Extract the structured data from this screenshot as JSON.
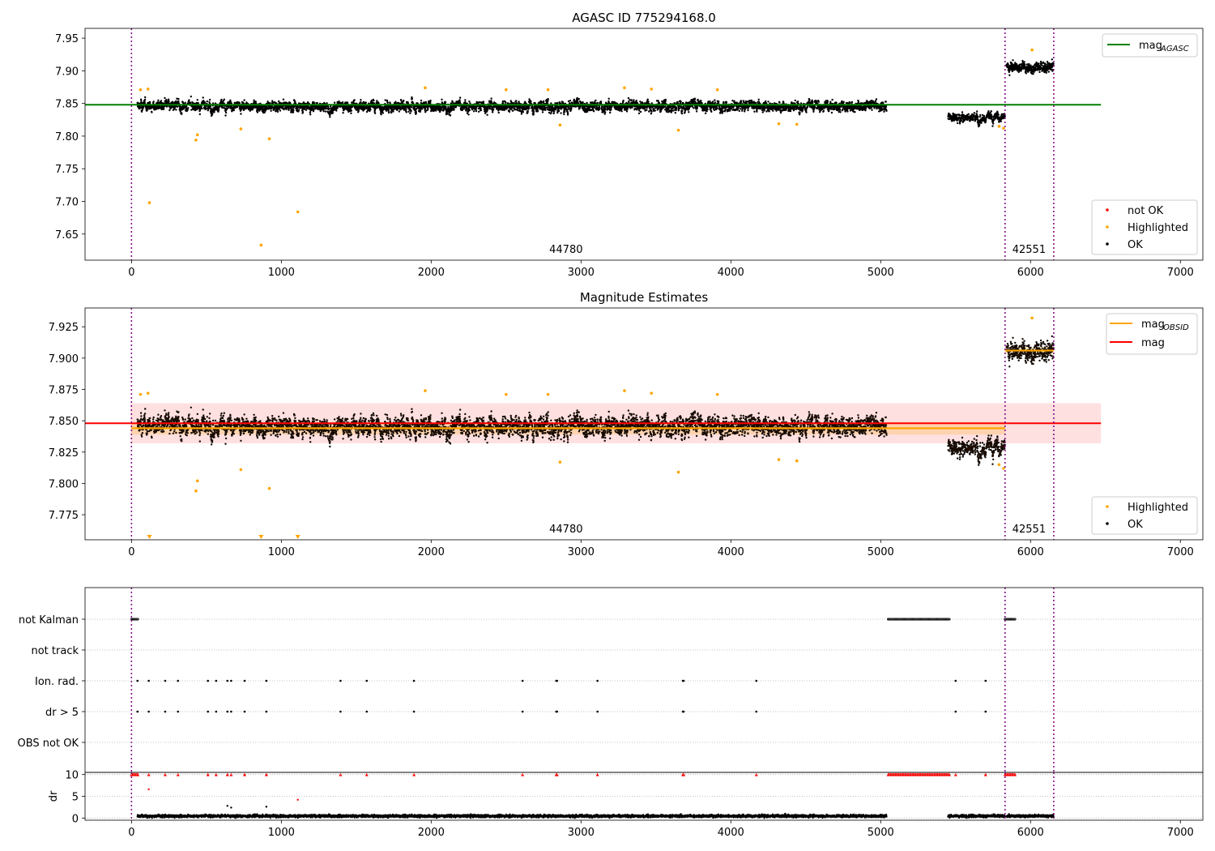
{
  "chart_data": [
    {
      "type": "scatter",
      "title": "AGASC ID 775294168.0",
      "xlim": [
        -310,
        7150
      ],
      "ylim": [
        7.61,
        7.965
      ],
      "xticks": [
        0,
        1000,
        2000,
        3000,
        4000,
        5000,
        6000,
        7000
      ],
      "xtick_labels": [
        "0",
        "1000",
        "2000",
        "3000",
        "4000",
        "5000",
        "6000",
        "7000"
      ],
      "yticks": [
        7.65,
        7.7,
        7.75,
        7.8,
        7.85,
        7.9,
        7.95
      ],
      "ytick_labels": [
        "7.65",
        "7.70",
        "7.75",
        "7.80",
        "7.85",
        "7.90",
        "7.95"
      ],
      "vlines": [
        0,
        5830,
        6155
      ],
      "vline_color": "#800080",
      "obsid_labels": [
        {
          "x": 2900,
          "text": "44780"
        },
        {
          "x": 5990,
          "text": "42551"
        }
      ],
      "ref_line": {
        "value": 7.848,
        "x_end": 6470,
        "color": "#008000",
        "name": "mag",
        "sub": "AGASC"
      },
      "segments": [
        {
          "x0": 40,
          "x1": 5040,
          "mean": 7.846,
          "spread": 0.007
        },
        {
          "x0": 5450,
          "x1": 5830,
          "mean": 7.829,
          "spread": 0.006
        },
        {
          "x0": 5840,
          "x1": 6155,
          "mean": 7.906,
          "spread": 0.008
        }
      ],
      "highlighted": [
        [
          60,
          7.871
        ],
        [
          110,
          7.872
        ],
        [
          430,
          7.794
        ],
        [
          440,
          7.802
        ],
        [
          120,
          7.698
        ],
        [
          730,
          7.811
        ],
        [
          920,
          7.796
        ],
        [
          1110,
          7.684
        ],
        [
          865,
          7.633
        ],
        [
          1960,
          7.874
        ],
        [
          2500,
          7.871
        ],
        [
          2780,
          7.871
        ],
        [
          2860,
          7.817
        ],
        [
          3290,
          7.874
        ],
        [
          3470,
          7.872
        ],
        [
          3650,
          7.809
        ],
        [
          3910,
          7.871
        ],
        [
          4320,
          7.819
        ],
        [
          4440,
          7.818
        ],
        [
          5790,
          7.815
        ],
        [
          5820,
          7.812
        ],
        [
          6010,
          7.932
        ]
      ],
      "legend_upper": [
        {
          "name": "mag",
          "sub": "AGASC",
          "color": "#008000",
          "marker": "line"
        }
      ],
      "legend_lower": [
        {
          "name": "not OK",
          "color": "#ff0000",
          "marker": "dot"
        },
        {
          "name": "Highlighted",
          "color": "#ffa500",
          "marker": "dot"
        },
        {
          "name": "OK",
          "color": "#000000",
          "marker": "dot"
        }
      ],
      "series": [
        {
          "name": "OK",
          "color": "#000000"
        },
        {
          "name": "Highlighted",
          "color": "#ffa500"
        },
        {
          "name": "not OK",
          "color": "#ff0000"
        }
      ]
    },
    {
      "type": "scatter",
      "title": "Magnitude Estimates",
      "xlim": [
        -310,
        7150
      ],
      "ylim": [
        7.755,
        7.94
      ],
      "xticks": [
        0,
        1000,
        2000,
        3000,
        4000,
        5000,
        6000,
        7000
      ],
      "xtick_labels": [
        "0",
        "1000",
        "2000",
        "3000",
        "4000",
        "5000",
        "6000",
        "7000"
      ],
      "yticks": [
        7.775,
        7.8,
        7.825,
        7.85,
        7.875,
        7.9,
        7.925
      ],
      "ytick_labels": [
        "7.775",
        "7.800",
        "7.825",
        "7.850",
        "7.875",
        "7.900",
        "7.925"
      ],
      "vlines": [
        0,
        5830,
        6155
      ],
      "vline_color": "#800080",
      "obsid_labels": [
        {
          "x": 2900,
          "text": "44780"
        },
        {
          "x": 5990,
          "text": "42551"
        }
      ],
      "mag_line": {
        "value": 7.848,
        "x_end": 6470,
        "band": [
          7.832,
          7.864
        ],
        "color": "#ff0000"
      },
      "obsid_mags": [
        {
          "x0": 0,
          "x1": 5830,
          "value": 7.844,
          "band": [
            7.839,
            7.849
          ]
        },
        {
          "x0": 5830,
          "x1": 6155,
          "value": 7.906,
          "band": [
            7.903,
            7.909
          ]
        }
      ],
      "segments": [
        {
          "x0": 40,
          "x1": 5040,
          "mean": 7.846,
          "spread": 0.007
        },
        {
          "x0": 5450,
          "x1": 5830,
          "mean": 7.829,
          "spread": 0.006
        },
        {
          "x0": 5840,
          "x1": 6155,
          "mean": 7.906,
          "spread": 0.008
        }
      ],
      "highlighted": [
        [
          60,
          7.871
        ],
        [
          110,
          7.872
        ],
        [
          430,
          7.794
        ],
        [
          440,
          7.802
        ],
        [
          730,
          7.811
        ],
        [
          920,
          7.796
        ],
        [
          1960,
          7.874
        ],
        [
          2500,
          7.871
        ],
        [
          2780,
          7.871
        ],
        [
          2860,
          7.817
        ],
        [
          3290,
          7.874
        ],
        [
          3470,
          7.872
        ],
        [
          3650,
          7.809
        ],
        [
          3910,
          7.871
        ],
        [
          4320,
          7.819
        ],
        [
          4440,
          7.818
        ],
        [
          5790,
          7.815
        ],
        [
          5820,
          7.812
        ],
        [
          6010,
          7.932
        ]
      ],
      "clipped_low": [
        120,
        865,
        1110
      ],
      "legend_upper": [
        {
          "name": "mag",
          "sub": "OBSID",
          "color": "#ffa500",
          "marker": "line"
        },
        {
          "name": "mag",
          "sub": "",
          "color": "#ff0000",
          "marker": "line"
        }
      ],
      "legend_lower": [
        {
          "name": "Highlighted",
          "color": "#ffa500",
          "marker": "dot"
        },
        {
          "name": "OK",
          "color": "#000000",
          "marker": "dot"
        }
      ]
    },
    {
      "type": "scatter",
      "title": "",
      "xlim": [
        -310,
        7150
      ],
      "xticks": [
        0,
        1000,
        2000,
        3000,
        4000,
        5000,
        6000,
        7000
      ],
      "xtick_labels": [
        "0",
        "1000",
        "2000",
        "3000",
        "4000",
        "5000",
        "6000",
        "7000"
      ],
      "flag_rows": [
        "not Kalman",
        "not track",
        "Ion. rad.",
        "dr > 5",
        "OBS not OK"
      ],
      "vlines": [
        0,
        5830,
        6155
      ],
      "vline_color": "#800080",
      "not_kalman_ranges": [
        [
          0,
          45
        ],
        [
          5050,
          5460
        ],
        [
          5830,
          5900
        ]
      ],
      "event_times": [
        40,
        115,
        225,
        310,
        510,
        565,
        640,
        665,
        755,
        900,
        1395,
        1570,
        1885,
        2610,
        2835,
        2840,
        3110,
        3680,
        3685,
        4170,
        5500,
        5700
      ],
      "dr_panel": {
        "ylabel": "dr",
        "ylim": [
          -0.5,
          10.5
        ],
        "yticks": [
          0,
          5,
          10
        ],
        "ytick_labels": [
          "0",
          "5",
          "10"
        ],
        "outliers": [
          [
            115,
            6.6
          ],
          [
            640,
            2.8
          ],
          [
            665,
            2.4
          ],
          [
            900,
            2.6
          ],
          [
            1110,
            4.2
          ]
        ],
        "clipped_ranges": [
          [
            0,
            45
          ],
          [
            5050,
            5460
          ],
          [
            5830,
            5900
          ]
        ]
      }
    }
  ]
}
